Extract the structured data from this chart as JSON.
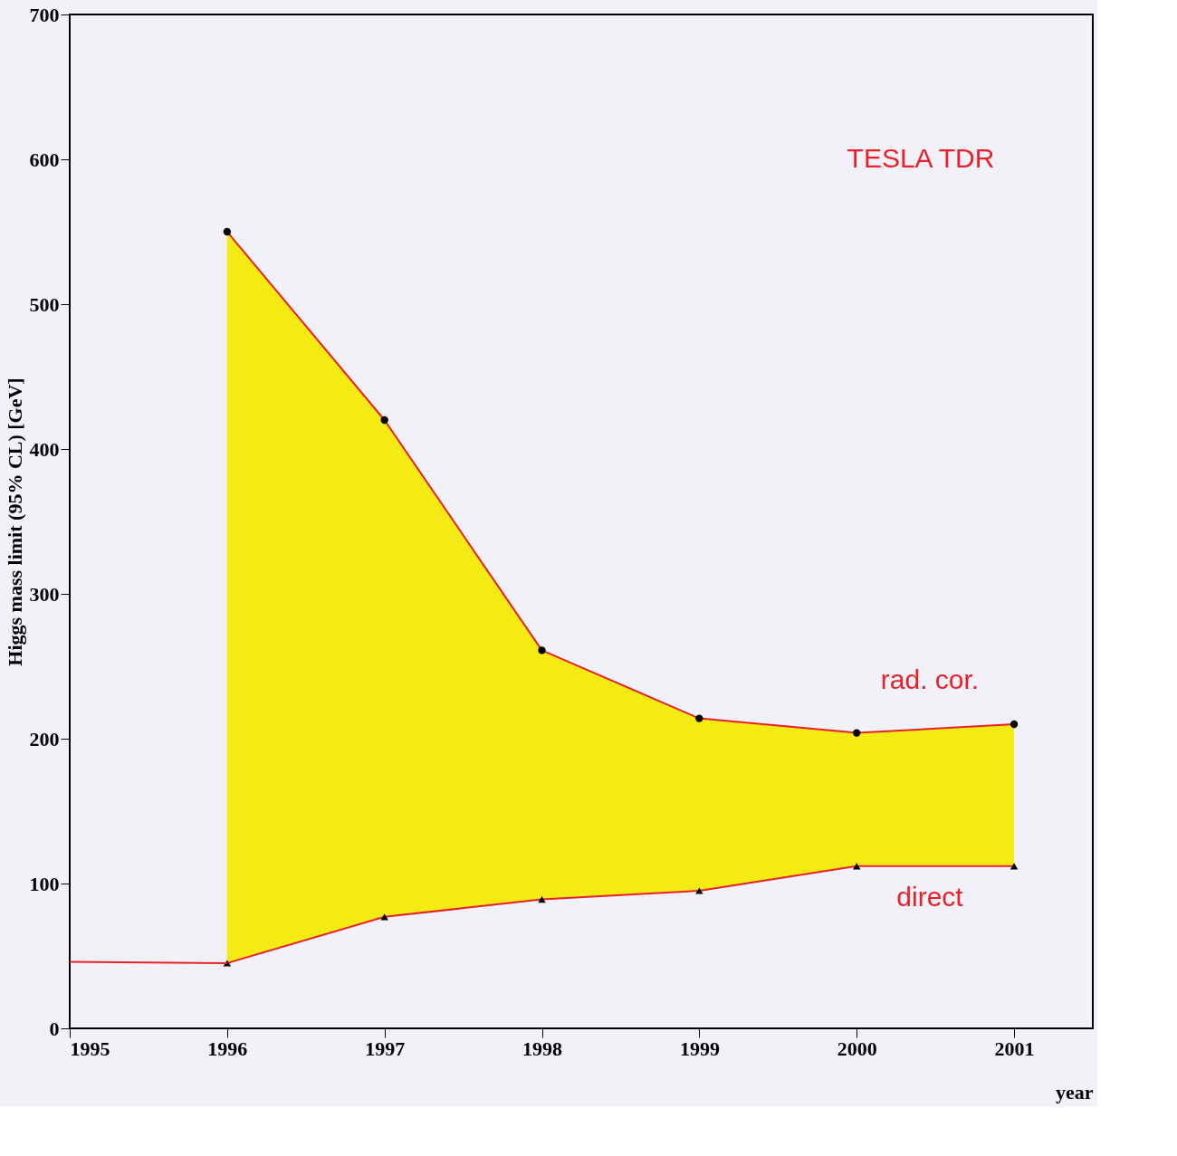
{
  "chart_data": {
    "type": "line",
    "xlabel": "year",
    "ylabel": "Higgs mass limit (95% CL) [GeV]",
    "xlim": [
      1995,
      2001.5
    ],
    "xticks": [
      1995,
      1996,
      1997,
      1998,
      1999,
      2000,
      2001
    ],
    "ylim": [
      0,
      700
    ],
    "yticks": [
      0,
      100,
      200,
      300,
      400,
      500,
      600,
      700
    ],
    "grid": false,
    "series": [
      {
        "color": "#e8202a",
        "marker": "circle",
        "x": [
          1996,
          1997,
          1998,
          1999,
          2000,
          2001
        ],
        "values": [
          550,
          420,
          261,
          214,
          204,
          210
        ],
        "lower": [
          45,
          77,
          89,
          95,
          112,
          112
        ],
        "upper": [
          550,
          420,
          261,
          214,
          204,
          210
        ]
      },
      {
        "color": "#e8202a",
        "marker": "triangle",
        "x": [
          1996,
          1997,
          1998,
          1999,
          2000,
          2001
        ],
        "values": [
          45,
          77,
          89,
          95,
          112,
          112
        ]
      },
      {
        "color": "#e8202a",
        "marker": "none",
        "x": [
          1995,
          1996
        ],
        "values": [
          46,
          45
        ]
      }
    ],
    "annotations": [
      "TESLA TDR",
      "rad. cor.",
      "direct"
    ]
  }
}
